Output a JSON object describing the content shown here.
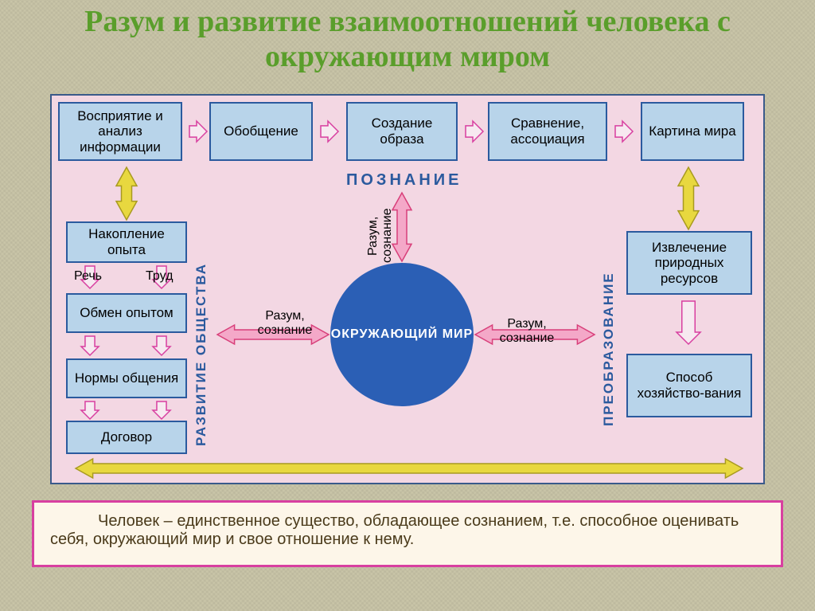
{
  "title": {
    "text": "Разум и развитие взаимоотношений человека с окружающим миром",
    "color": "#5a9e2b",
    "fontsize": 38
  },
  "diagram": {
    "bg": "#f3d7e3",
    "node_bg": "#b8d4ea",
    "node_border": "#2b5a9e",
    "circle_bg": "#2b5fb5",
    "circle_text": "ОКРУЖАЮЩИЙ МИР",
    "label_poznanie": "ПОЗНАНИЕ",
    "label_razvitie": "РАЗВИТИЕ ОБЩЕСТВА",
    "label_preobraz": "ПРЕОБРАЗОВАНИЕ",
    "label_color": "#2b5a9e",
    "razum_label": "Разум, сознание",
    "rech": "Речь",
    "trud": "Труд",
    "top_row": [
      "Восприятие и анализ информации",
      "Обобщение",
      "Создание образа",
      "Сравнение, ассоциация",
      "Картина мира"
    ],
    "left_col": [
      "Накопление опыта",
      "Обмен опытом",
      "Нормы общения",
      "Договор"
    ],
    "right_col": [
      "Извлечение природных ресурсов",
      "Способ хозяйство-вания"
    ]
  },
  "arrows": {
    "block_outline": "#d83fa0",
    "block_fill": "#f7e9f0",
    "yellow_fill": "#e8d83f",
    "yellow_outline": "#a89a20",
    "pink_fill": "#f4a8c8",
    "pink_outline": "#d83f7a"
  },
  "footer": {
    "text": "Человек – единственное существо, обладающее сознанием, т.е. способное оценивать себя, окружающий мир и свое отношение к нему."
  }
}
